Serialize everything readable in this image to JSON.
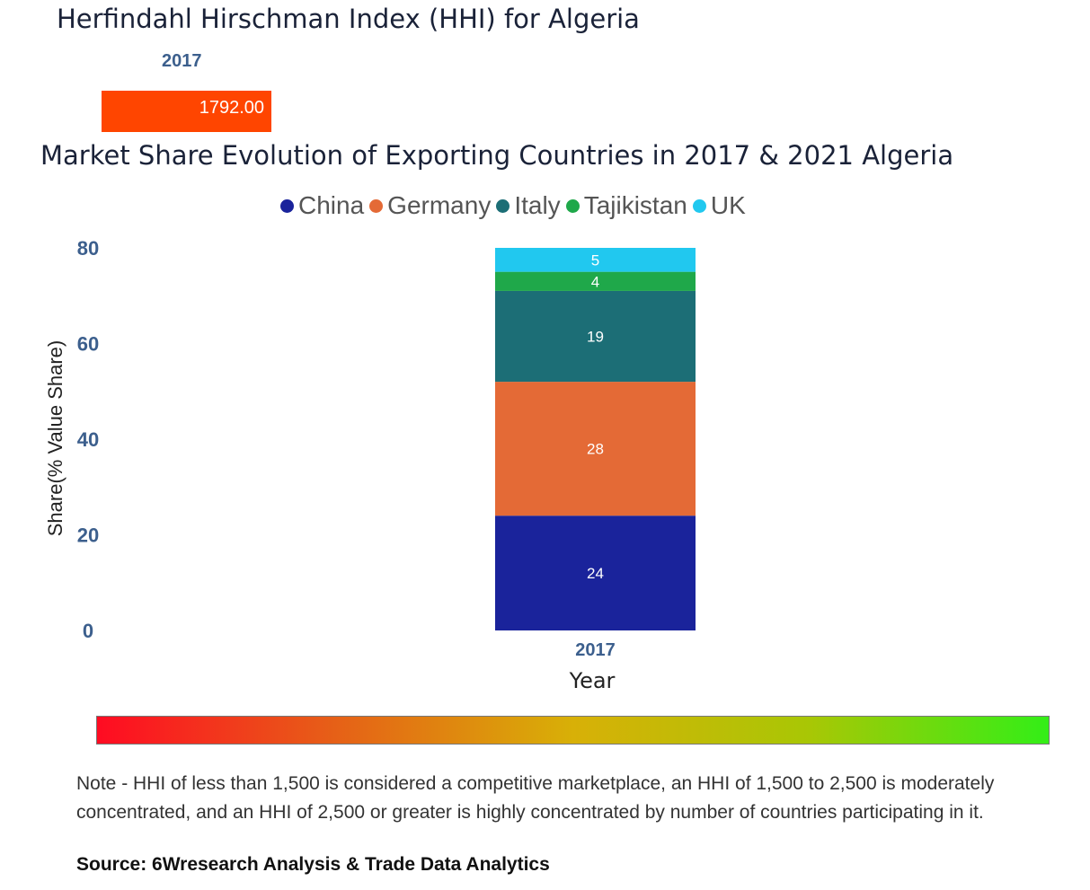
{
  "hhi": {
    "title": "Herfindahl Hirschman Index (HHI) for Algeria",
    "year": "2017",
    "value": 1792.0,
    "value_label": "1792.00",
    "bar_color": "#ff4500"
  },
  "chart_data": {
    "type": "bar",
    "stacked": true,
    "title": "Market Share Evolution of Exporting Countries in 2017 & 2021 Algeria",
    "categories": [
      "2017"
    ],
    "series": [
      {
        "name": "China",
        "color": "#1a239b",
        "values": [
          24
        ]
      },
      {
        "name": "Germany",
        "color": "#e46a36",
        "values": [
          28
        ]
      },
      {
        "name": "Italy",
        "color": "#1c6e76",
        "values": [
          19
        ]
      },
      {
        "name": "Tajikistan",
        "color": "#1fa84a",
        "values": [
          4
        ]
      },
      {
        "name": "UK",
        "color": "#21c8ef",
        "values": [
          5
        ]
      }
    ],
    "xlabel": "Year",
    "ylabel": "Share(% Value Share)",
    "ylim": [
      0,
      80
    ],
    "yticks": [
      0,
      20,
      40,
      60,
      80
    ],
    "grid": false,
    "legend_position": "top"
  },
  "scale_bar": {
    "colors": [
      "#ff0b22",
      "#e66017",
      "#d8b007",
      "#a8c705",
      "#33ee17"
    ]
  },
  "note": "Note - HHI of less than 1,500 is considered a competitive marketplace, an HHI of 1,500 to 2,500 is moderately concentrated, and an HHI of 2,500 or greater is highly concentrated by number of countries participating in it.",
  "source": "Source: 6Wresearch Analysis & Trade Data Analytics"
}
